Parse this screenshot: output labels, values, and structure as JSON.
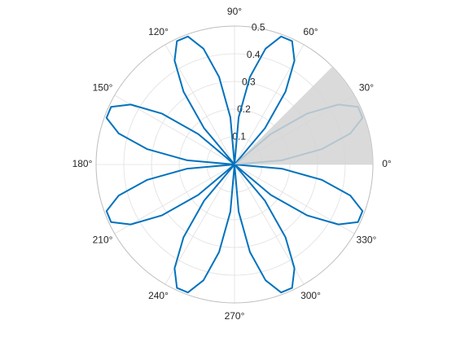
{
  "chart_data": {
    "type": "polar",
    "color": "#0072bd",
    "rlim": [
      0,
      0.5
    ],
    "rticks": [
      0.1,
      0.2,
      0.3,
      0.4,
      0.5
    ],
    "rtick_angle": 80,
    "thetaticks": [
      {
        "value": 0,
        "label": "0°"
      },
      {
        "value": 30,
        "label": "30°"
      },
      {
        "value": 60,
        "label": "60°"
      },
      {
        "value": 90,
        "label": "90°"
      },
      {
        "value": 120,
        "label": "120°"
      },
      {
        "value": 150,
        "label": "150°"
      },
      {
        "value": 180,
        "label": "180°"
      },
      {
        "value": 210,
        "label": "210°"
      },
      {
        "value": 240,
        "label": "240°"
      },
      {
        "value": 270,
        "label": "270°"
      },
      {
        "value": 300,
        "label": "300°"
      },
      {
        "value": 330,
        "label": "330°"
      }
    ],
    "shaded_sector": [
      0,
      45
    ],
    "shade_color": "#d3d3d3",
    "theta": [
      0,
      5,
      10,
      15,
      20,
      25,
      30,
      35,
      40,
      45,
      50,
      55,
      60,
      65,
      70,
      75,
      80,
      85,
      90,
      95,
      100,
      105,
      110,
      115,
      120,
      125,
      130,
      135,
      140,
      145,
      150,
      155,
      160,
      165,
      170,
      175,
      180,
      185,
      190,
      195,
      200,
      205,
      210,
      215,
      220,
      225,
      230,
      235,
      240,
      245,
      250,
      255,
      260,
      265,
      270,
      275,
      280,
      285,
      290,
      295,
      300,
      305,
      310,
      315,
      320,
      325,
      330,
      335,
      340,
      345,
      350,
      355,
      360
    ],
    "r": [
      0,
      0.171,
      0.321,
      0.433,
      0.492,
      0.492,
      0.433,
      0.321,
      0.171,
      0,
      -0.171,
      -0.321,
      -0.433,
      -0.492,
      -0.492,
      -0.433,
      -0.321,
      -0.171,
      0,
      0.171,
      0.321,
      0.433,
      0.492,
      0.492,
      0.433,
      0.321,
      0.171,
      0,
      -0.171,
      -0.321,
      -0.433,
      -0.492,
      -0.492,
      -0.433,
      -0.321,
      -0.171,
      0,
      0.171,
      0.321,
      0.433,
      0.492,
      0.492,
      0.433,
      0.321,
      0.171,
      0,
      -0.171,
      -0.321,
      -0.433,
      -0.492,
      -0.492,
      -0.433,
      -0.321,
      -0.171,
      0,
      0.171,
      0.321,
      0.433,
      0.492,
      0.492,
      0.433,
      0.321,
      0.171,
      0,
      -0.171,
      -0.321,
      -0.433,
      -0.492,
      -0.492,
      -0.433,
      -0.321,
      -0.171,
      0
    ]
  }
}
